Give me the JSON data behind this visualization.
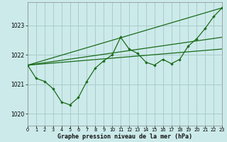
{
  "background_color": "#cceaea",
  "grid_color": "#aacccc",
  "line_color": "#1a6b1a",
  "ylim": [
    1019.6,
    1023.8
  ],
  "xlim": [
    0,
    23
  ],
  "yticks": [
    1020,
    1021,
    1022,
    1023
  ],
  "xticks": [
    0,
    1,
    2,
    3,
    4,
    5,
    6,
    7,
    8,
    9,
    10,
    11,
    12,
    13,
    14,
    15,
    16,
    17,
    18,
    19,
    20,
    21,
    22,
    23
  ],
  "xlabel": "Graphe pression niveau de la mer (hPa)",
  "main_x": [
    0,
    1,
    2,
    3,
    4,
    5,
    6,
    7,
    8,
    9,
    10,
    11,
    12,
    13,
    14,
    15,
    16,
    17,
    18,
    19,
    20,
    21,
    22,
    23
  ],
  "main_y": [
    1021.65,
    1021.2,
    1021.1,
    1020.85,
    1020.4,
    1020.3,
    1020.55,
    1021.1,
    1021.55,
    1021.8,
    1022.0,
    1022.6,
    1022.2,
    1022.05,
    1021.75,
    1021.65,
    1021.85,
    1021.7,
    1021.85,
    1022.3,
    1022.55,
    1022.9,
    1023.3,
    1023.6
  ],
  "straight_lines": [
    {
      "x": [
        0,
        23
      ],
      "y": [
        1021.65,
        1022.2
      ]
    },
    {
      "x": [
        0,
        23
      ],
      "y": [
        1021.65,
        1022.6
      ]
    },
    {
      "x": [
        0,
        23
      ],
      "y": [
        1021.65,
        1023.6
      ]
    }
  ]
}
